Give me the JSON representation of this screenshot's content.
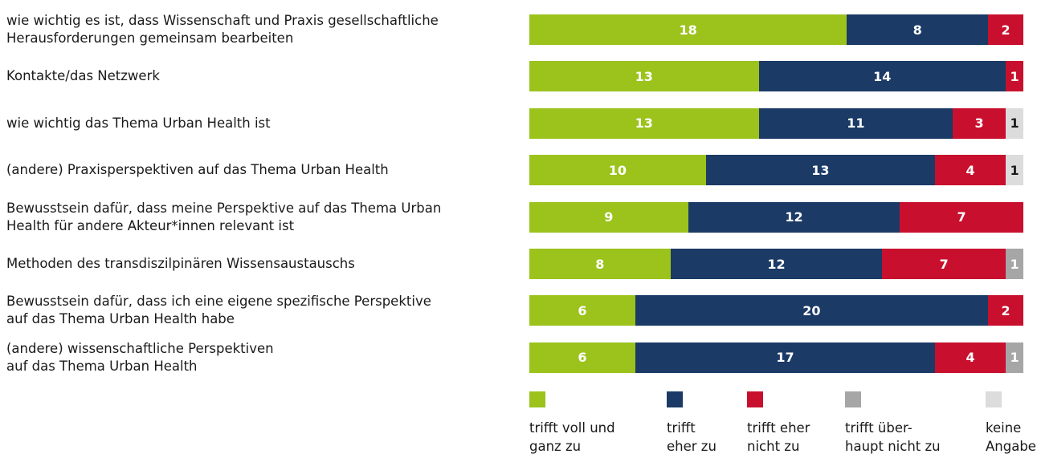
{
  "chart_data": {
    "type": "stacked-bar",
    "categories": [
      "wie wichtig es ist, dass Wissenschaft und Praxis gesellschaftliche\nHerausforderungen gemeinsam bearbeiten",
      "Kontakte/das Netzwerk",
      "wie wichtig das Thema Urban Health ist",
      "(andere) Praxisperspektiven auf das Thema Urban Health",
      "Bewusstsein dafür, dass meine Perspektive auf das Thema Urban\nHealth für andere Akteur*innen relevant ist",
      "Methoden des transdiszilpinären Wissensaustauschs",
      "Bewusstsein dafür, dass ich eine eigene spezifische Perspektive\nauf das Thema Urban Health habe",
      "(andere) wissenschaftliche Perspektiven\nauf das Thema Urban Health"
    ],
    "series": [
      {
        "name": "trifft voll und\nganz zu",
        "color": "#9bc31c",
        "label_color": "#ffffff",
        "values": [
          18,
          13,
          13,
          10,
          9,
          8,
          6,
          6
        ]
      },
      {
        "name": "trifft\neher zu",
        "color": "#1b3a66",
        "label_color": "#ffffff",
        "values": [
          8,
          14,
          11,
          13,
          12,
          12,
          20,
          17
        ]
      },
      {
        "name": "trifft eher\nnicht zu",
        "color": "#c8102e",
        "label_color": "#ffffff",
        "values": [
          2,
          1,
          3,
          4,
          7,
          7,
          2,
          4
        ]
      },
      {
        "name": "trifft über-\nhaupt nicht zu",
        "color": "#a6a6a6",
        "label_color": "#ffffff",
        "values": [
          null,
          null,
          null,
          null,
          null,
          1,
          null,
          1
        ]
      },
      {
        "name": "keine\nAngabe",
        "color": "#dcdcdc",
        "label_color": "#1a1a1a",
        "values": [
          null,
          null,
          1,
          1,
          null,
          null,
          null,
          null
        ]
      }
    ]
  }
}
